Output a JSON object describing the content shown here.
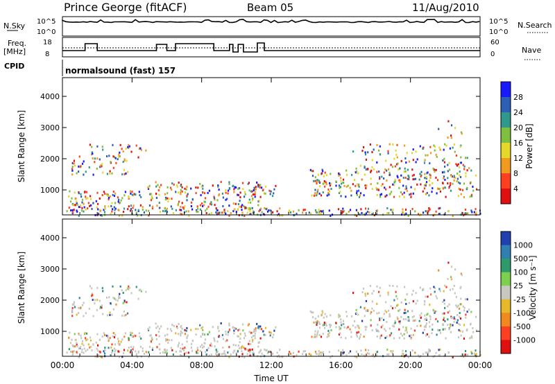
{
  "header": {
    "station": "Prince George (fitACF)",
    "beam": "Beam 05",
    "date": "11/Aug/2010"
  },
  "status_panel": {
    "nsky_label": "N.Sky",
    "nsky_ticks": [
      "10^5",
      "10^0"
    ],
    "nsearch_label": "N.Search",
    "freq_label": "Freq.",
    "freq_unit": "[MHz]",
    "freq_ticks": [
      "18",
      "8"
    ],
    "nave_label": "Nave",
    "nave_ticks": [
      "60",
      "0"
    ],
    "cpid_label": "CPID",
    "cpid_value": "normalsound (fast) 157"
  },
  "chart_data": [
    {
      "type": "heatmap",
      "name": "power",
      "ylabel": "Slant Range [km]",
      "xlabel": "Time UT",
      "x_range_hours": [
        0,
        24
      ],
      "ylim": [
        200,
        4600
      ],
      "yticks": [
        "1000",
        "2000",
        "3000",
        "4000"
      ],
      "xticks": [
        "00:00",
        "04:00",
        "08:00",
        "12:00",
        "16:00",
        "20:00",
        "00:00"
      ],
      "colorbar_label": "Power [dB]",
      "colorbar_ticks": [
        "4",
        "8",
        "12",
        "16",
        "20",
        "24",
        "28"
      ],
      "colors": [
        "#1a1aff",
        "#2d5fb4",
        "#2f9a8c",
        "#7fbf3f",
        "#e6d82a",
        "#f09a20",
        "#ff4020",
        "#e01010"
      ]
    },
    {
      "type": "heatmap",
      "name": "velocity",
      "ylabel": "Slant Range [km]",
      "xlabel": "Time UT",
      "x_range_hours": [
        0,
        24
      ],
      "ylim": [
        200,
        4600
      ],
      "yticks": [
        "1000",
        "2000",
        "3000",
        "4000"
      ],
      "xticks": [
        "00:00",
        "04:00",
        "08:00",
        "12:00",
        "16:00",
        "20:00",
        "00:00"
      ],
      "colorbar_label": "Velocity [m s⁻¹]",
      "colorbar_ticks": [
        "1000",
        "500",
        "100",
        "25",
        "-25",
        "-100",
        "-500",
        "-1000"
      ],
      "colors": [
        "#2040b0",
        "#2f7fb0",
        "#2f9a6c",
        "#7fcf4f",
        "#c8c8c0",
        "#e6b82a",
        "#f08a20",
        "#ff4020",
        "#e01010"
      ]
    }
  ]
}
